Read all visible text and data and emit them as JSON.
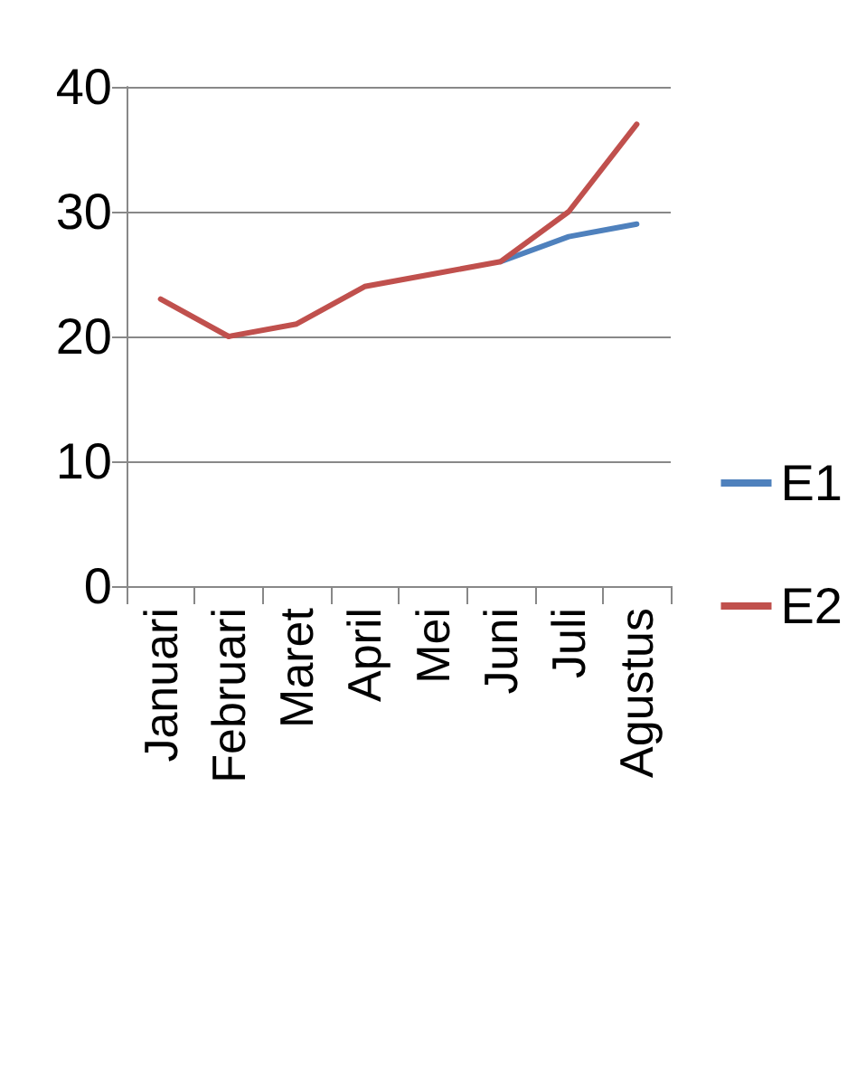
{
  "chart_data": {
    "type": "line",
    "categories": [
      "Januari",
      "Februari",
      "Maret",
      "April",
      "Mei",
      "Juni",
      "Juli",
      "Agustus"
    ],
    "series": [
      {
        "name": "E1",
        "color": "#4f81bd",
        "values": [
          null,
          null,
          null,
          null,
          null,
          26,
          28,
          29
        ]
      },
      {
        "name": "E2",
        "color": "#c0504d",
        "values": [
          23,
          20,
          21,
          24,
          25,
          26,
          30,
          37
        ]
      }
    ],
    "ylim": [
      0,
      40
    ],
    "yticks": [
      0,
      10,
      20,
      30,
      40
    ],
    "grid": "y",
    "legend": "right",
    "marker": "none"
  }
}
